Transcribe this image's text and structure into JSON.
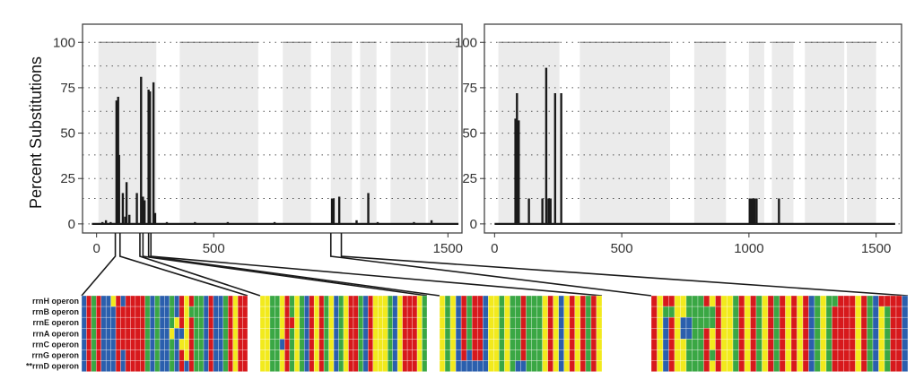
{
  "colors": {
    "line": "#1a1a1a",
    "region": "#ebebeb",
    "region_cap": "#8c8c8c",
    "grid": "#555555",
    "panel_border": "#444444",
    "connector": "#1a1a1a",
    "nuc_A": "#d7191c",
    "nuc_C": "#2b5fad",
    "nuc_G": "#3aa744",
    "nuc_T": "#f2ea1d",
    "cell_border": "#ffffff"
  },
  "chart_data": [
    {
      "type": "line",
      "title": "",
      "xlabel": "",
      "ylabel": "Percent Substitutions",
      "xlim": [
        -60,
        1560
      ],
      "ylim": [
        -5,
        110
      ],
      "xticks": [
        0,
        500,
        1500
      ],
      "yticks": [
        0,
        25,
        50,
        75,
        100
      ],
      "gridlines_y": [
        14,
        38,
        62,
        87
      ],
      "regions": [
        [
          8,
          255
        ],
        [
          355,
          690
        ],
        [
          795,
          915
        ],
        [
          1000,
          1090
        ],
        [
          1125,
          1195
        ],
        [
          1255,
          1405
        ],
        [
          1415,
          1545
        ]
      ],
      "baseline": {
        "x": [
          -20,
          1545
        ],
        "y": 0
      },
      "spikes": [
        {
          "x": 25,
          "y": 1
        },
        {
          "x": 40,
          "y": 2
        },
        {
          "x": 60,
          "y": 1
        },
        {
          "x": 85,
          "y": 68
        },
        {
          "x": 88,
          "y": 52
        },
        {
          "x": 92,
          "y": 70
        },
        {
          "x": 96,
          "y": 38
        },
        {
          "x": 112,
          "y": 17
        },
        {
          "x": 122,
          "y": 4
        },
        {
          "x": 128,
          "y": 23
        },
        {
          "x": 140,
          "y": 5
        },
        {
          "x": 172,
          "y": 17
        },
        {
          "x": 190,
          "y": 81
        },
        {
          "x": 198,
          "y": 15
        },
        {
          "x": 205,
          "y": 13
        },
        {
          "x": 222,
          "y": 74
        },
        {
          "x": 228,
          "y": 73
        },
        {
          "x": 243,
          "y": 78
        },
        {
          "x": 250,
          "y": 6
        },
        {
          "x": 300,
          "y": 1
        },
        {
          "x": 420,
          "y": 1
        },
        {
          "x": 560,
          "y": 1
        },
        {
          "x": 760,
          "y": 1
        },
        {
          "x": 1005,
          "y": 14
        },
        {
          "x": 1012,
          "y": 14
        },
        {
          "x": 1036,
          "y": 15
        },
        {
          "x": 1110,
          "y": 2
        },
        {
          "x": 1160,
          "y": 17
        },
        {
          "x": 1200,
          "y": 1
        },
        {
          "x": 1355,
          "y": 1
        },
        {
          "x": 1430,
          "y": 2
        }
      ]
    },
    {
      "type": "line",
      "title": "",
      "xlabel": "",
      "ylabel": "",
      "xlim": [
        -40,
        1600
      ],
      "ylim": [
        -5,
        110
      ],
      "xticks": [
        0,
        500,
        1000,
        1500
      ],
      "yticks": [
        0,
        25,
        50,
        75,
        100
      ],
      "gridlines_y": [
        14,
        38,
        62,
        87
      ],
      "regions": [
        [
          15,
          255
        ],
        [
          335,
          690
        ],
        [
          785,
          910
        ],
        [
          1000,
          1060
        ],
        [
          1090,
          1175
        ],
        [
          1220,
          1375
        ],
        [
          1385,
          1500
        ]
      ],
      "baseline": {
        "x": [
          0,
          1575
        ],
        "y": 0
      },
      "spikes": [
        {
          "x": 82,
          "y": 58
        },
        {
          "x": 88,
          "y": 72
        },
        {
          "x": 95,
          "y": 57
        },
        {
          "x": 135,
          "y": 14
        },
        {
          "x": 188,
          "y": 14
        },
        {
          "x": 203,
          "y": 86
        },
        {
          "x": 212,
          "y": 14
        },
        {
          "x": 220,
          "y": 14
        },
        {
          "x": 238,
          "y": 72
        },
        {
          "x": 262,
          "y": 72
        },
        {
          "x": 1003,
          "y": 14
        },
        {
          "x": 1010,
          "y": 14
        },
        {
          "x": 1016,
          "y": 14
        },
        {
          "x": 1022,
          "y": 14
        },
        {
          "x": 1030,
          "y": 14
        },
        {
          "x": 1118,
          "y": 14
        }
      ]
    }
  ],
  "alignment": {
    "operons": [
      "rrnH operon",
      "rrnB operon",
      "rrnE operon",
      "rrnA operon",
      "rrnC operon",
      "rrnG operon",
      "**rrnD operon"
    ],
    "blocks": [
      {
        "consensus": "CAGACCCACAATAGCGCCGCATAGGCACCGATAA",
        "variants": [
          [
            0,
            6,
            "T"
          ],
          [
            0,
            11,
            "A"
          ],
          [
            1,
            8,
            "A"
          ],
          [
            1,
            11,
            "A"
          ],
          [
            1,
            22,
            "G"
          ],
          [
            2,
            8,
            "A"
          ],
          [
            2,
            11,
            "A"
          ],
          [
            2,
            19,
            "T"
          ],
          [
            3,
            8,
            "A"
          ],
          [
            3,
            11,
            "A"
          ],
          [
            3,
            18,
            "T"
          ],
          [
            3,
            20,
            "C"
          ],
          [
            4,
            8,
            "A"
          ],
          [
            4,
            9,
            "A"
          ],
          [
            4,
            11,
            "A"
          ],
          [
            4,
            20,
            "T"
          ],
          [
            4,
            21,
            "T"
          ],
          [
            5,
            8,
            "C"
          ],
          [
            5,
            9,
            "A"
          ],
          [
            5,
            11,
            "A"
          ],
          [
            6,
            8,
            "C"
          ],
          [
            6,
            9,
            "A"
          ],
          [
            6,
            11,
            "A"
          ],
          [
            6,
            21,
            "C"
          ]
        ]
      },
      {
        "consensus": "TTGGTAGTGCATAGTCGTAAGCATTTGCTAAATG",
        "variants": [
          [
            1,
            5,
            "A"
          ],
          [
            2,
            6,
            "A"
          ],
          [
            4,
            4,
            "C"
          ],
          [
            4,
            30,
            "A"
          ],
          [
            5,
            6,
            "G"
          ]
        ]
      },
      {
        "consensus": "TGTCAGAACTTGTGGAGGGTATCTATAGAT",
        "variants": [
          [
            5,
            5,
            "C"
          ],
          [
            6,
            3,
            "C"
          ],
          [
            6,
            4,
            "C"
          ],
          [
            6,
            5,
            "C"
          ],
          [
            6,
            6,
            "C"
          ],
          [
            6,
            7,
            "C"
          ],
          [
            6,
            8,
            "C"
          ],
          [
            6,
            14,
            "C"
          ],
          [
            6,
            15,
            "C"
          ]
        ]
      },
      {
        "consensus": "ATCATTGGGATATTGATAGTAGATATACGTGAAAATAGCTGAAC",
        "variants": [
          [
            0,
            2,
            "A"
          ],
          [
            1,
            2,
            "G"
          ],
          [
            1,
            3,
            "G"
          ],
          [
            2,
            5,
            "C"
          ],
          [
            2,
            6,
            "C"
          ],
          [
            3,
            5,
            "C"
          ],
          [
            3,
            6,
            "C"
          ],
          [
            1,
            9,
            "G"
          ],
          [
            1,
            10,
            "G"
          ],
          [
            2,
            9,
            "G"
          ],
          [
            2,
            10,
            "G"
          ],
          [
            2,
            11,
            "A"
          ],
          [
            5,
            9,
            "A"
          ],
          [
            5,
            10,
            "G"
          ],
          [
            0,
            31,
            "G"
          ],
          [
            0,
            39,
            "A"
          ],
          [
            0,
            40,
            "A"
          ]
        ]
      }
    ]
  }
}
